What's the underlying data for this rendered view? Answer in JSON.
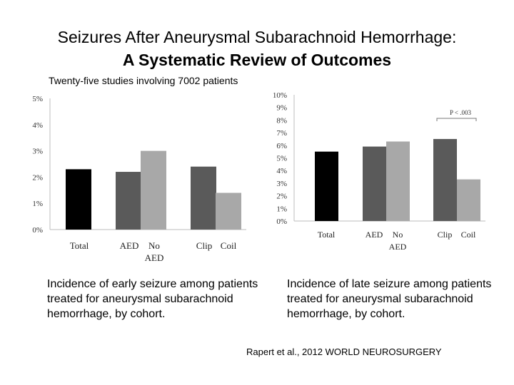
{
  "slide": {
    "title_line1": "Seizures After Aneurysmal Subarachnoid Hemorrhage:",
    "title_line2": "A Systematic Review of Outcomes",
    "subtitle": "Twenty-five studies involving 7002 patients",
    "caption_left": {
      "pre": "Incidence of ",
      "emph": "early",
      "post": " seizure among patients treated for aneurysmal subarachnoid hemorrhage, by cohort."
    },
    "caption_right": {
      "pre": "Incidence of ",
      "emph": "late",
      "post": " seizure among patients treated for aneurysmal subarachnoid hemorrhage, by cohort."
    },
    "citation": "Rapert et al., 2012   WORLD NEUROSURGERY"
  },
  "colors": {
    "black": "#000000",
    "dark": "#5a5a5a",
    "light": "#a8a8a8"
  },
  "chart_data": [
    {
      "type": "bar",
      "title": "",
      "ylim": [
        0,
        5
      ],
      "yticks": [
        0,
        1,
        2,
        3,
        4,
        5
      ],
      "ytick_labels": [
        "0%",
        "1%",
        "2%",
        "3%",
        "4%",
        "5%"
      ],
      "grid": false,
      "bars": [
        {
          "name": "Total",
          "value": 2.3,
          "color": "black"
        },
        {
          "name": "AED",
          "value": 2.2,
          "color": "dark"
        },
        {
          "name": "No AED",
          "value": 3.0,
          "color": "light"
        },
        {
          "name": "Clip",
          "value": 2.4,
          "color": "dark"
        },
        {
          "name": "Coil",
          "value": 1.4,
          "color": "light"
        }
      ],
      "xlabels": [
        "Total",
        "AED",
        "No",
        "AED",
        "Clip",
        "Coil"
      ]
    },
    {
      "type": "bar",
      "title": "",
      "ylim": [
        0,
        10
      ],
      "yticks": [
        0,
        1,
        2,
        3,
        4,
        5,
        6,
        7,
        8,
        9,
        10
      ],
      "ytick_labels": [
        "0%",
        "1%",
        "2%",
        "3%",
        "4%",
        "5%",
        "6%",
        "7%",
        "8%",
        "9%",
        "10%"
      ],
      "grid": false,
      "bars": [
        {
          "name": "Total",
          "value": 5.5,
          "color": "black"
        },
        {
          "name": "AED",
          "value": 5.9,
          "color": "dark"
        },
        {
          "name": "No AED",
          "value": 6.3,
          "color": "light"
        },
        {
          "name": "Clip",
          "value": 6.5,
          "color": "dark"
        },
        {
          "name": "Coil",
          "value": 3.3,
          "color": "light"
        }
      ],
      "xlabels": [
        "Total",
        "AED",
        "No",
        "AED",
        "Clip",
        "Coil"
      ],
      "annotation": "P < .003"
    }
  ]
}
